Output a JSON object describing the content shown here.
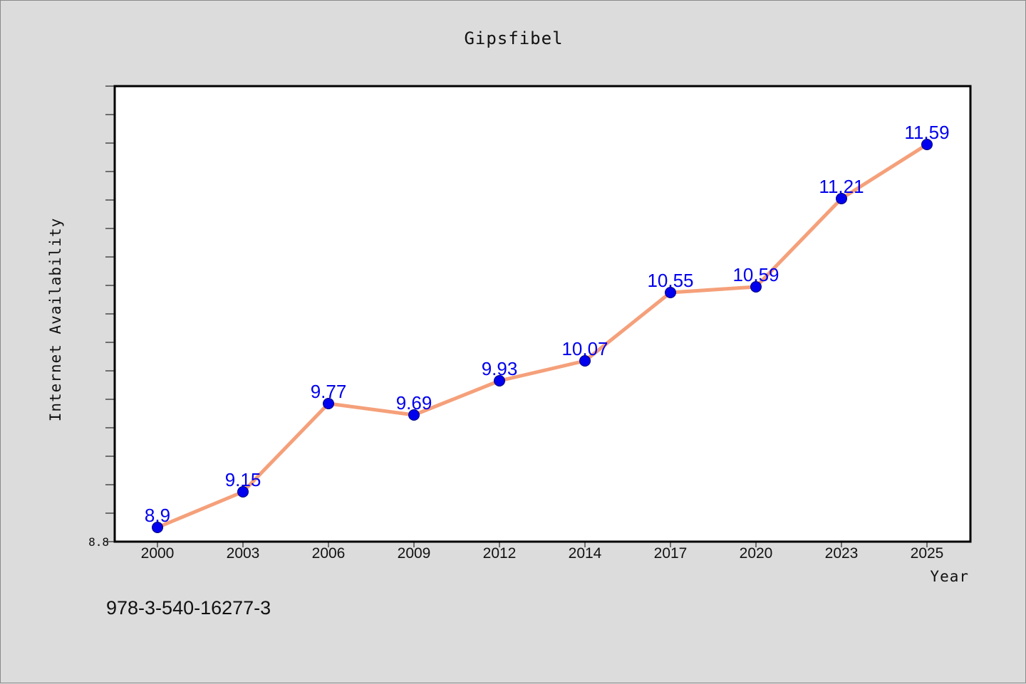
{
  "chart_data": {
    "type": "line",
    "title": "Gipsfibel",
    "xlabel": "Year",
    "ylabel": "Internet Availability",
    "categories": [
      "2000",
      "2003",
      "2006",
      "2009",
      "2012",
      "2014",
      "2017",
      "2020",
      "2023",
      "2025"
    ],
    "series": [
      {
        "values": [
          8.9,
          9.15,
          9.77,
          9.69,
          9.93,
          10.07,
          10.55,
          10.59,
          11.21,
          11.59
        ],
        "labels": [
          "8.9",
          "9.15",
          "9.77",
          "9.69",
          "9.93",
          "10.07",
          "10.55",
          "10.59",
          "11.21",
          "11.59"
        ]
      }
    ],
    "yticks": [
      "8.8"
    ],
    "ylim": [
      8.8,
      12.0
    ],
    "grid": false,
    "colors": {
      "line": "#f5a07a",
      "marker": "#0000ee",
      "label": "#0000ee",
      "plot_bg": "#ffffff",
      "page_bg": "#dcdcdc"
    }
  },
  "footer": {
    "isbn": "978-3-540-16277-3"
  }
}
